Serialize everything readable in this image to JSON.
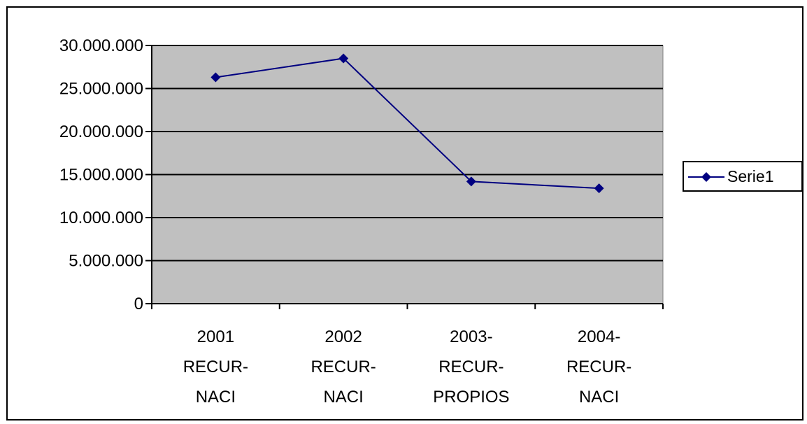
{
  "chart_data": {
    "type": "line",
    "categories": [
      [
        "2001",
        "RECUR-",
        "NACI"
      ],
      [
        "2002",
        "RECUR-",
        "NACI"
      ],
      [
        "2003-",
        "RECUR-",
        "PROPIOS"
      ],
      [
        "2004-",
        "RECUR-",
        "NACI"
      ]
    ],
    "series": [
      {
        "name": "Serie1",
        "values": [
          26300000,
          28500000,
          14200000,
          13400000
        ]
      }
    ],
    "y_ticks": [
      "0",
      "5.000.000",
      "10.000.000",
      "15.000.000",
      "20.000.000",
      "25.000.000",
      "30.000.000"
    ],
    "ylim": [
      0,
      30000000
    ],
    "grid": true,
    "plot_background": "#c0c0c0",
    "line_color": "#000080",
    "marker": "diamond",
    "legend_position": "right"
  },
  "legend": {
    "label": "Serie1"
  }
}
